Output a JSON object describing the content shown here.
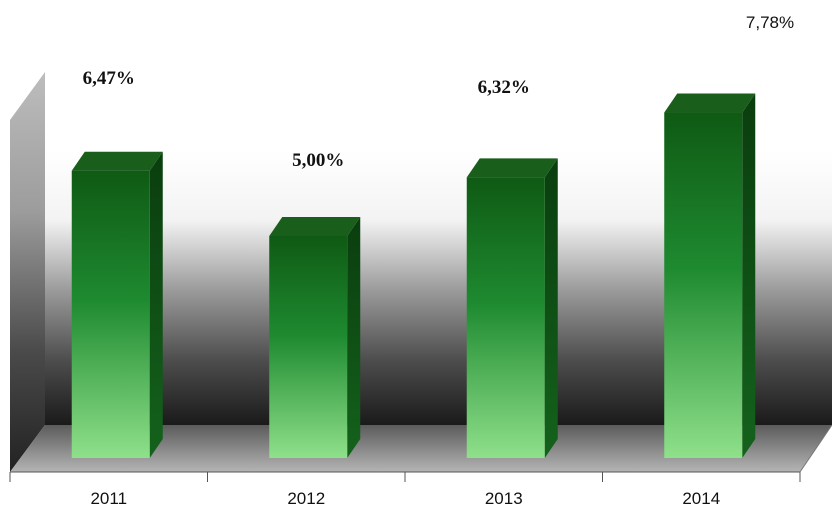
{
  "chart_data": {
    "type": "bar",
    "style": "3d",
    "categories": [
      "2011",
      "2012",
      "2013",
      "2014"
    ],
    "values": [
      6.47,
      5.0,
      6.32,
      7.78
    ],
    "data_labels": [
      "6,47%",
      "5,00%",
      "6,32%",
      "7,78%"
    ],
    "title": "",
    "xlabel": "",
    "ylabel": "",
    "ylim": [
      0,
      8
    ],
    "grid": false,
    "legend": "none",
    "colors": {
      "bar_top": "#0f5a14",
      "bar_mid": "#1e8a30",
      "bar_bottom": "#8fe08a",
      "bar_side": "#0c4a12",
      "bar_cap": "#1a5e1c"
    }
  }
}
